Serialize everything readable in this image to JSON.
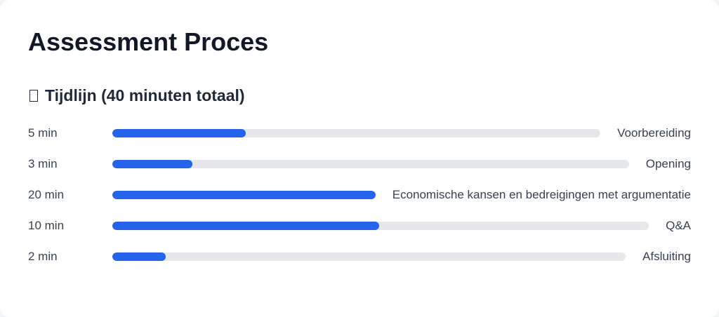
{
  "page": {
    "title": "Assessment Proces"
  },
  "timeline": {
    "heading": "Tijdlijn (40 minuten totaal)",
    "heading_icon": "document-icon",
    "accent_color": "#2563eb",
    "track_color": "#e5e7eb",
    "items": [
      {
        "duration": "5 min",
        "minutes": 5,
        "label": "Voorbereiding"
      },
      {
        "duration": "3 min",
        "minutes": 3,
        "label": "Opening"
      },
      {
        "duration": "20 min",
        "minutes": 20,
        "label": "Economische kansen en bedreigingen met argumentatie"
      },
      {
        "duration": "10 min",
        "minutes": 10,
        "label": "Q&A"
      },
      {
        "duration": "2 min",
        "minutes": 2,
        "label": "Afsluiting"
      }
    ]
  }
}
